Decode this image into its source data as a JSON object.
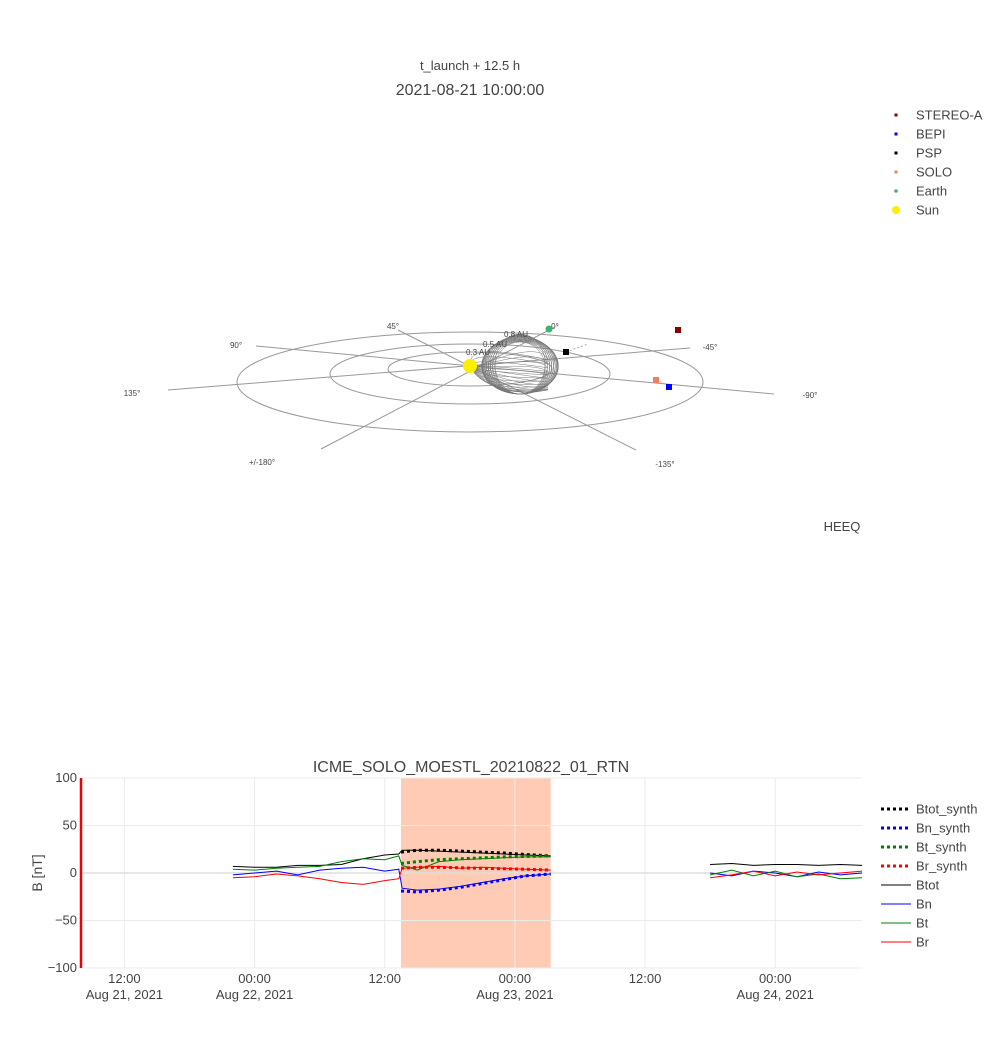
{
  "top": {
    "subtitle": "t_launch + 12.5 h",
    "title": "2021-08-21 10:00:00",
    "frame_label": "HEEQ",
    "angle_labels": [
      "45°",
      "0°",
      "90°",
      "-45°",
      "135°",
      "-90°",
      "+/-180°",
      "-135°"
    ],
    "au_labels": [
      "0.3 AU",
      "0.5 AU",
      "0.8 AU"
    ],
    "legend": [
      {
        "name": "STEREO-A",
        "color": "#8b0000",
        "marker": "square"
      },
      {
        "name": "BEPI",
        "color": "#0000ff",
        "marker": "square"
      },
      {
        "name": "PSP",
        "color": "#000000",
        "marker": "square"
      },
      {
        "name": "SOLO",
        "color": "#f08060",
        "marker": "square"
      },
      {
        "name": "Earth",
        "color": "#3cb371",
        "marker": "circle"
      },
      {
        "name": "Sun",
        "color": "#ffee00",
        "marker": "circle"
      }
    ]
  },
  "chart_data": {
    "type": "line",
    "title": "ICME_SOLO_MOESTL_20210822_01_RTN",
    "ylabel": "B [nT]",
    "ylim": [
      -100,
      100
    ],
    "yticks": [
      100,
      50,
      0,
      -50,
      -100
    ],
    "xticks": [
      {
        "line1": "12:00",
        "line2": "Aug 21, 2021"
      },
      {
        "line1": "00:00",
        "line2": "Aug 22, 2021"
      },
      {
        "line1": "12:00",
        "line2": ""
      },
      {
        "line1": "00:00",
        "line2": "Aug 23, 2021"
      },
      {
        "line1": "12:00",
        "line2": ""
      },
      {
        "line1": "00:00",
        "line2": "Aug 24, 2021"
      }
    ],
    "x_unit": "hours since Aug 21 2021 00:00",
    "x_range": [
      8,
      80
    ],
    "icme_interval": [
      37.5,
      51.3
    ],
    "grid": true,
    "legend_position": "right",
    "series": [
      {
        "name": "Btot_synth",
        "color": "#000000",
        "style": "dotted",
        "x": [
          37.5,
          39,
          41,
          43,
          45,
          47,
          49,
          51.3
        ],
        "y": [
          22,
          24,
          24,
          23,
          22,
          21,
          19.5,
          18
        ]
      },
      {
        "name": "Bn_synth",
        "color": "#0000ff",
        "style": "dotted",
        "x": [
          37.5,
          39,
          41,
          43,
          45,
          47,
          49,
          51.3
        ],
        "y": [
          -19,
          -20,
          -18,
          -15,
          -11,
          -7,
          -3,
          -1
        ]
      },
      {
        "name": "Bt_synth",
        "color": "#008000",
        "style": "dotted",
        "x": [
          37.5,
          39,
          41,
          43,
          45,
          47,
          49,
          51.3
        ],
        "y": [
          10,
          12,
          14,
          15,
          16,
          17,
          17.5,
          18
        ]
      },
      {
        "name": "Br_synth",
        "color": "#ff0000",
        "style": "dotted",
        "x": [
          37.5,
          39,
          41,
          43,
          45,
          47,
          49,
          51.3
        ],
        "y": [
          5,
          6,
          6,
          5.5,
          5,
          4.5,
          4,
          3
        ]
      },
      {
        "name": "Btot",
        "color": "#000000",
        "style": "solid",
        "x": [
          22,
          24,
          26,
          28,
          30,
          32,
          34,
          36,
          37.3,
          37.6,
          39,
          41,
          43,
          45,
          47,
          49,
          51.3,
          66,
          68,
          70,
          72,
          74,
          76,
          78,
          80
        ],
        "y": [
          7,
          6,
          6,
          8,
          8,
          9,
          15,
          19,
          20,
          24,
          24,
          23,
          22,
          21,
          20,
          19,
          18,
          9,
          10,
          8,
          9,
          9,
          8,
          9,
          8
        ]
      },
      {
        "name": "Bn",
        "color": "#0000ff",
        "style": "solid",
        "x": [
          22,
          24,
          26,
          28,
          30,
          32,
          34,
          36,
          37.3,
          37.6,
          39,
          41,
          43,
          45,
          47,
          49,
          51.3,
          66,
          68,
          70,
          72,
          74,
          76,
          78,
          80
        ],
        "y": [
          -2,
          0,
          2,
          -2,
          3,
          5,
          6,
          2,
          4,
          -16,
          -18,
          -17,
          -14,
          -10,
          -6,
          -3,
          -1,
          0,
          -3,
          2,
          0,
          -4,
          1,
          -2,
          0
        ]
      },
      {
        "name": "Bt",
        "color": "#008000",
        "style": "solid",
        "x": [
          22,
          24,
          26,
          28,
          30,
          32,
          34,
          36,
          37.3,
          37.6,
          39,
          41,
          43,
          45,
          47,
          49,
          51.3,
          66,
          68,
          70,
          72,
          74,
          76,
          78,
          80
        ],
        "y": [
          4,
          3,
          5,
          6,
          7,
          12,
          15,
          14,
          18,
          8,
          3,
          12,
          14,
          15,
          16,
          17,
          17,
          -2,
          3,
          -3,
          2,
          -4,
          -1,
          -6,
          -5
        ]
      },
      {
        "name": "Br",
        "color": "#ff0000",
        "style": "solid",
        "x": [
          22,
          24,
          26,
          28,
          30,
          32,
          34,
          36,
          37.3,
          37.6,
          39,
          41,
          43,
          45,
          47,
          49,
          51.3,
          66,
          68,
          70,
          72,
          74,
          76,
          78,
          80
        ],
        "y": [
          -5,
          -4,
          -1,
          -3,
          -6,
          -10,
          -12,
          -8,
          -6,
          5,
          6,
          7,
          5,
          6,
          5,
          4,
          3,
          -5,
          -2,
          2,
          -3,
          1,
          -2,
          0,
          2
        ]
      }
    ]
  }
}
